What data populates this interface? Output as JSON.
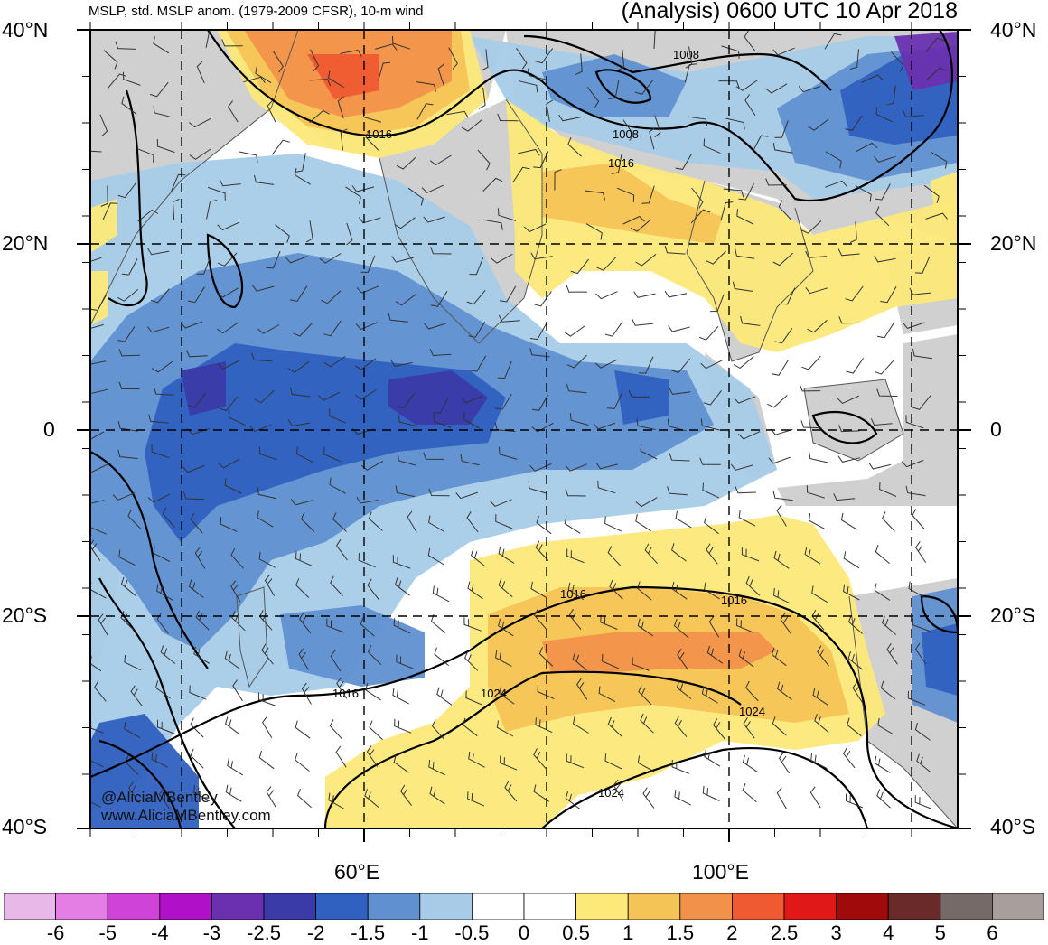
{
  "header": {
    "title_left": "MSLP, std. MSLP anom. (1979-2009 CFSR), 10-m wind",
    "title_right": "(Analysis) 0600 UTC 10 Apr 2018"
  },
  "axes": {
    "lat_left": [
      "40°N",
      "20°N",
      "0",
      "20°S",
      "40°S"
    ],
    "lat_right": [
      "40°N",
      "20°N",
      "0",
      "20°S",
      "40°S"
    ],
    "lon": [
      "60°E",
      "100°E"
    ]
  },
  "credits": [
    "@AliciaMBentley",
    "www.AliciaMBentley.com"
  ],
  "contour_labels": [
    "1008",
    "1008",
    "1016",
    "1016",
    "1016",
    "1016",
    "1016",
    "1024",
    "1024",
    "1024"
  ],
  "colorbar": {
    "colors": [
      "#e8b8e8",
      "#e47de4",
      "#d043d8",
      "#b010c8",
      "#6a30b0",
      "#3a3aa8",
      "#3060c0",
      "#6090d0",
      "#a8cce8",
      "#ffffff",
      "#ffffff",
      "#fce97a",
      "#f5c456",
      "#f2924a",
      "#f05a32",
      "#e01818",
      "#a00a0a",
      "#6a2a2a",
      "#756a68",
      "#a89e9c"
    ],
    "labels": [
      "-6",
      "-5",
      "-4",
      "-3",
      "-2.5",
      "-2",
      "-1.5",
      "-1",
      "-0.5",
      "0",
      "0.5",
      "1",
      "1.5",
      "2",
      "2.5",
      "3",
      "4",
      "5",
      "6"
    ]
  },
  "colors": {
    "land": "#d0d0d0",
    "ocean": "#ffffff"
  }
}
